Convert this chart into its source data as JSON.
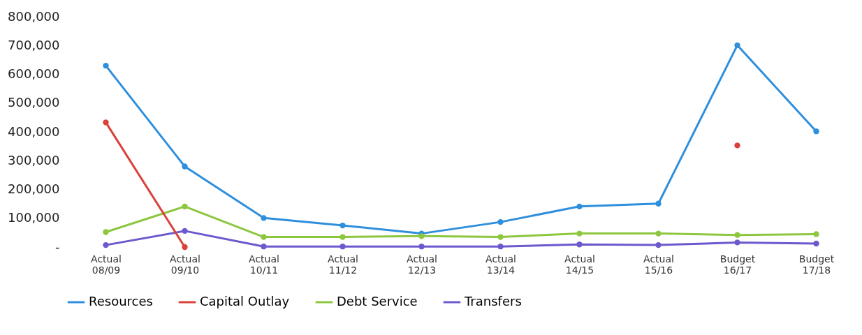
{
  "chart_data": {
    "type": "line",
    "categories": [
      "Actual 08/09",
      "Actual 09/10",
      "Actual 10/11",
      "Actual 11/12",
      "Actual 12/13",
      "Actual 13/14",
      "Actual 14/15",
      "Actual 15/16",
      "Budget 16/17",
      "Budget 17/18"
    ],
    "series": [
      {
        "name": "Resources",
        "color": "#2f8fdc",
        "values": [
          630000,
          280000,
          101000,
          75000,
          47000,
          87000,
          141000,
          151000,
          701000,
          402000
        ]
      },
      {
        "name": "Capital Outlay",
        "color": "#d9413b",
        "values": [
          433000,
          0,
          null,
          null,
          null,
          null,
          null,
          null,
          353000,
          null
        ]
      },
      {
        "name": "Debt Service",
        "color": "#8dc63f",
        "values": [
          52000,
          141000,
          35000,
          35000,
          38000,
          35000,
          47000,
          47000,
          42000,
          45000
        ]
      },
      {
        "name": "Transfers",
        "color": "#6a5acd",
        "values": [
          7000,
          56000,
          2000,
          2000,
          2000,
          2000,
          9000,
          7000,
          16000,
          12000
        ]
      }
    ],
    "ylim": [
      0,
      800000
    ],
    "yticks": [
      {
        "value": 0,
        "label": "-"
      },
      {
        "value": 100000,
        "label": "100,000"
      },
      {
        "value": 200000,
        "label": "200,000"
      },
      {
        "value": 300000,
        "label": "300,000"
      },
      {
        "value": 400000,
        "label": "400,000"
      },
      {
        "value": 500000,
        "label": "500,000"
      },
      {
        "value": 600000,
        "label": "600,000"
      },
      {
        "value": 700000,
        "label": "700,000"
      },
      {
        "value": 800000,
        "label": "800,000"
      }
    ],
    "grid": false,
    "legend": "bottom",
    "marker": "circle",
    "line_style": "solid"
  }
}
